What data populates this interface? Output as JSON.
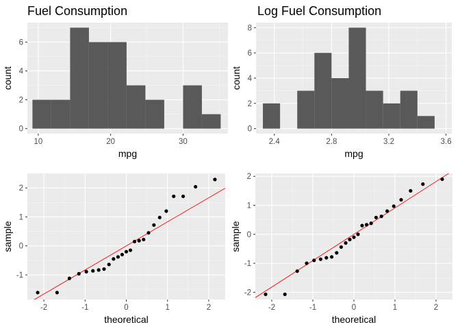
{
  "colors": {
    "panel_background": "#ebebeb",
    "grid_major": "#ffffff",
    "grid_minor": "#f5f5f5",
    "bar_fill": "#595959",
    "point": "#000000",
    "ref_line": "#ff0000",
    "tick": "#333333"
  },
  "chart_data": [
    {
      "id": "hist-mpg",
      "type": "bar",
      "title": "Fuel Consumption",
      "xlabel": "mpg",
      "ylabel": "count",
      "xlim": [
        8.5,
        36.2
      ],
      "ylim": [
        -0.35,
        7.35
      ],
      "xticks": [
        10,
        20,
        30
      ],
      "xtick_labels": [
        "10",
        "20",
        "30"
      ],
      "yticks": [
        0,
        2,
        4,
        6
      ],
      "ytick_labels": [
        "0",
        "2",
        "4",
        "6"
      ],
      "bins": [
        {
          "x0": 9.2,
          "x1": 11.8,
          "count": 2
        },
        {
          "x0": 11.8,
          "x1": 14.4,
          "count": 2
        },
        {
          "x0": 14.4,
          "x1": 17.0,
          "count": 7
        },
        {
          "x0": 17.0,
          "x1": 19.6,
          "count": 6
        },
        {
          "x0": 19.6,
          "x1": 22.2,
          "count": 6
        },
        {
          "x0": 22.2,
          "x1": 24.8,
          "count": 3
        },
        {
          "x0": 24.8,
          "x1": 27.4,
          "count": 2
        },
        {
          "x0": 27.4,
          "x1": 30.0,
          "count": 0
        },
        {
          "x0": 30.0,
          "x1": 32.6,
          "count": 3
        },
        {
          "x0": 32.6,
          "x1": 35.2,
          "count": 1
        }
      ],
      "grid": true
    },
    {
      "id": "hist-logmpg",
      "type": "bar",
      "title": "Log Fuel Consumption",
      "xlabel": "mpg",
      "ylabel": "count",
      "xlim": [
        2.272,
        3.64
      ],
      "ylim": [
        -0.4,
        8.4
      ],
      "xticks": [
        2.4,
        2.8,
        3.2,
        3.6
      ],
      "xtick_labels": [
        "2.4",
        "2.8",
        "3.2",
        "3.6"
      ],
      "yticks": [
        0,
        2,
        4,
        6,
        8
      ],
      "ytick_labels": [
        "0",
        "2",
        "4",
        "6",
        "8"
      ],
      "bins": [
        {
          "x0": 2.32,
          "x1": 2.44,
          "count": 2
        },
        {
          "x0": 2.44,
          "x1": 2.56,
          "count": 0
        },
        {
          "x0": 2.56,
          "x1": 2.68,
          "count": 3
        },
        {
          "x0": 2.68,
          "x1": 2.8,
          "count": 6
        },
        {
          "x0": 2.8,
          "x1": 2.92,
          "count": 4
        },
        {
          "x0": 2.92,
          "x1": 3.04,
          "count": 8
        },
        {
          "x0": 3.04,
          "x1": 3.16,
          "count": 3
        },
        {
          "x0": 3.16,
          "x1": 3.28,
          "count": 2
        },
        {
          "x0": 3.28,
          "x1": 3.4,
          "count": 3
        },
        {
          "x0": 3.4,
          "x1": 3.52,
          "count": 1
        }
      ],
      "grid": true
    },
    {
      "id": "qq-mpg",
      "type": "scatter",
      "title": "",
      "xlabel": "theoretical",
      "ylabel": "sample",
      "xlim": [
        -2.4,
        2.4
      ],
      "ylim": [
        -1.85,
        2.5
      ],
      "xticks": [
        -2,
        -1,
        0,
        1,
        2
      ],
      "xtick_labels": [
        "-2",
        "-1",
        "0",
        "1",
        "2"
      ],
      "yticks": [
        -1,
        0,
        1,
        2
      ],
      "ytick_labels": [
        "-1",
        "0",
        "1",
        "2"
      ],
      "x": [
        -2.15,
        -1.68,
        -1.38,
        -1.15,
        -0.97,
        -0.81,
        -0.67,
        -0.54,
        -0.42,
        -0.31,
        -0.2,
        -0.1,
        0.0,
        0.1,
        0.2,
        0.31,
        0.42,
        0.54,
        0.67,
        0.81,
        0.97,
        1.15,
        1.38,
        1.68,
        2.15
      ],
      "y": [
        -1.61,
        -1.61,
        -1.12,
        -0.96,
        -0.89,
        -0.86,
        -0.83,
        -0.8,
        -0.64,
        -0.45,
        -0.38,
        -0.3,
        -0.2,
        -0.15,
        0.15,
        0.18,
        0.22,
        0.45,
        0.72,
        0.98,
        1.2,
        1.71,
        1.71,
        2.04,
        2.29
      ],
      "ref_line": {
        "intercept": 0.0,
        "slope": 0.83
      },
      "grid": true
    },
    {
      "id": "qq-logmpg",
      "type": "scatter",
      "title": "",
      "xlabel": "theoretical",
      "ylabel": "sample",
      "xlim": [
        -2.4,
        2.4
      ],
      "ylim": [
        -2.25,
        2.1
      ],
      "xticks": [
        -2,
        -1,
        0,
        1,
        2
      ],
      "xtick_labels": [
        "-2",
        "-1",
        "0",
        "1",
        "2"
      ],
      "yticks": [
        -2,
        -1,
        0,
        1,
        2
      ],
      "ytick_labels": [
        "-2",
        "-1",
        "0",
        "1",
        "2"
      ],
      "x": [
        -2.15,
        -1.68,
        -1.38,
        -1.15,
        -0.97,
        -0.81,
        -0.67,
        -0.54,
        -0.42,
        -0.31,
        -0.2,
        -0.1,
        0.0,
        0.1,
        0.2,
        0.31,
        0.42,
        0.54,
        0.67,
        0.81,
        0.97,
        1.15,
        1.38,
        1.68,
        2.15
      ],
      "y": [
        -2.07,
        -2.07,
        -1.27,
        -1.0,
        -0.9,
        -0.86,
        -0.81,
        -0.78,
        -0.64,
        -0.44,
        -0.3,
        -0.18,
        -0.1,
        0.0,
        0.3,
        0.33,
        0.38,
        0.58,
        0.62,
        0.8,
        0.97,
        1.19,
        1.5,
        1.73,
        1.9
      ],
      "ref_line": {
        "intercept": 0.0,
        "slope": 0.91
      },
      "grid": true
    }
  ]
}
